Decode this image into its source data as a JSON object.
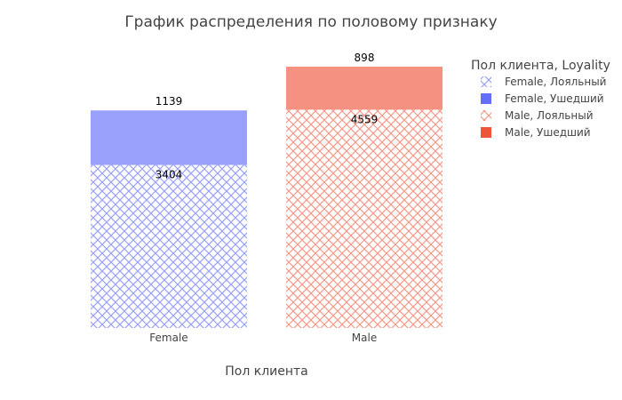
{
  "chart_data": {
    "type": "bar",
    "barmode": "stack",
    "title": "График распределения по половому признаку",
    "xlabel": "Пол клиента",
    "ylabel": "",
    "categories": [
      "Female",
      "Male"
    ],
    "ylim": [
      0,
      5457
    ],
    "grid": false,
    "legend_title": "Пол клиента, Loyality",
    "legend_position": "top-right",
    "series": [
      {
        "name": "Female, Лояльный",
        "category": "Female",
        "value": 3404,
        "color": "#636efa",
        "pattern": "crosshatch"
      },
      {
        "name": "Female, Ушедший",
        "category": "Female",
        "value": 1139,
        "color": "#636efa",
        "pattern": "solid"
      },
      {
        "name": "Male, Лояльный",
        "category": "Male",
        "value": 4559,
        "color": "#ef553b",
        "pattern": "crosshatch"
      },
      {
        "name": "Male, Ушедший",
        "category": "Male",
        "value": 898,
        "color": "#ef553b",
        "pattern": "solid"
      }
    ]
  }
}
